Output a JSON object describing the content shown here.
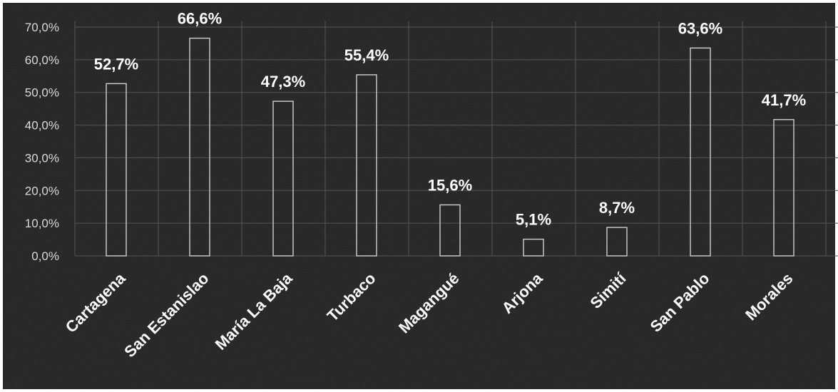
{
  "chart_data": {
    "type": "bar",
    "categories": [
      "Cartagena",
      "San Estanislao",
      "María La Baja",
      "Turbaco",
      "Magangué",
      "Arjona",
      "Simití",
      "San Pablo",
      "Morales"
    ],
    "values": [
      52.7,
      66.6,
      47.3,
      55.4,
      15.6,
      5.1,
      8.7,
      63.6,
      41.7
    ],
    "data_labels": [
      "52,7%",
      "66,6%",
      "47,3%",
      "55,4%",
      "15,6%",
      "5,1%",
      "8,7%",
      "63,6%",
      "41,7%"
    ],
    "ylim": [
      0,
      70
    ],
    "yticks": [
      0,
      10,
      20,
      30,
      40,
      50,
      60,
      70
    ],
    "ytick_labels": [
      "0,0%",
      "10,0%",
      "20,0%",
      "30,0%",
      "40,0%",
      "50,0%",
      "60,0%",
      "70,0%"
    ],
    "grid": true,
    "legend": false,
    "colors": {
      "background": "#2b2b2b",
      "bar_outline": "#cfcfcf",
      "grid": "#555555",
      "text": "#ffffff"
    }
  }
}
